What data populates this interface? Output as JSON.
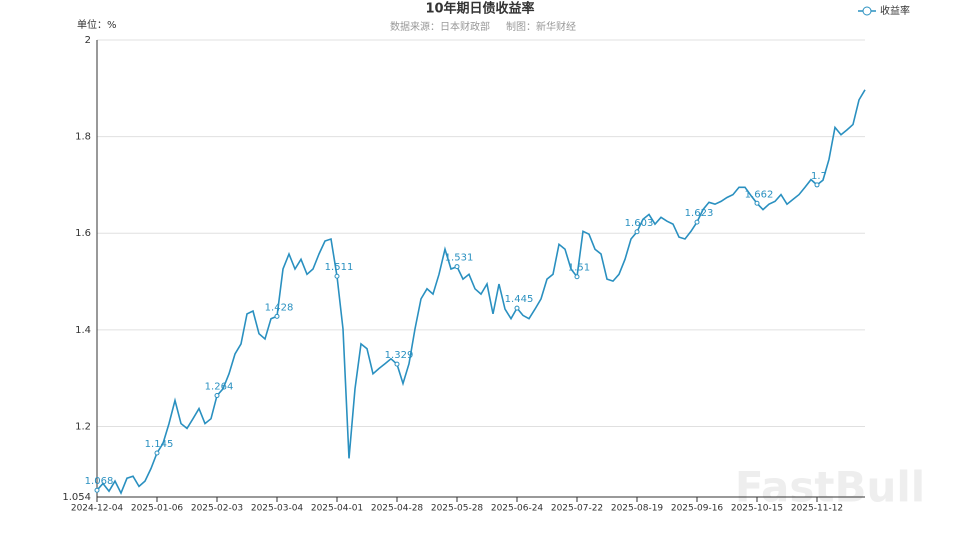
{
  "chart_data": {
    "type": "line",
    "title": "10年期日债收益率",
    "source": "数据来源：日本财政部",
    "maker": "制图：新华财经",
    "unit_label": "单位：%",
    "watermark": "FastBull",
    "categories": [
      "2024-12-04",
      null,
      null,
      null,
      null,
      null,
      null,
      null,
      null,
      null,
      "2025-01-06",
      null,
      null,
      null,
      null,
      null,
      null,
      null,
      null,
      null,
      "2025-02-03",
      null,
      null,
      null,
      null,
      null,
      null,
      null,
      null,
      null,
      "2025-03-04",
      null,
      null,
      null,
      null,
      null,
      null,
      null,
      null,
      null,
      "2025-04-01",
      null,
      null,
      null,
      null,
      null,
      null,
      null,
      null,
      null,
      "2025-04-28",
      null,
      null,
      null,
      null,
      null,
      null,
      null,
      null,
      null,
      "2025-05-28",
      null,
      null,
      null,
      null,
      null,
      null,
      null,
      null,
      null,
      "2025-06-24",
      null,
      null,
      null,
      null,
      null,
      null,
      null,
      null,
      null,
      "2025-07-22",
      null,
      null,
      null,
      null,
      null,
      null,
      null,
      null,
      null,
      "2025-08-19",
      null,
      null,
      null,
      null,
      null,
      null,
      null,
      null,
      null,
      "2025-09-16",
      null,
      null,
      null,
      null,
      null,
      null,
      null,
      null,
      null,
      "2025-10-15",
      null,
      null,
      null,
      null,
      null,
      null,
      null,
      null,
      null,
      "2025-11-12",
      null,
      null,
      null,
      null,
      null,
      null,
      null,
      null
    ],
    "series": [
      {
        "name": "收益率",
        "color": "#2a90c0",
        "values": [
          1.068,
          1.082,
          1.066,
          1.087,
          1.062,
          1.093,
          1.097,
          1.076,
          1.087,
          1.113,
          1.145,
          1.165,
          1.206,
          1.254,
          1.206,
          1.196,
          1.216,
          1.237,
          1.206,
          1.216,
          1.264,
          1.278,
          1.309,
          1.35,
          1.371,
          1.433,
          1.439,
          1.392,
          1.381,
          1.423,
          1.428,
          1.526,
          1.557,
          1.526,
          1.546,
          1.515,
          1.526,
          1.557,
          1.584,
          1.588,
          1.511,
          1.402,
          1.134,
          1.278,
          1.371,
          1.361,
          1.309,
          1.32,
          1.33,
          1.34,
          1.329,
          1.289,
          1.33,
          1.402,
          1.464,
          1.485,
          1.474,
          1.515,
          1.567,
          1.526,
          1.531,
          1.505,
          1.515,
          1.485,
          1.474,
          1.495,
          1.433,
          1.495,
          1.443,
          1.423,
          1.445,
          1.43,
          1.423,
          1.443,
          1.464,
          1.505,
          1.515,
          1.577,
          1.567,
          1.526,
          1.51,
          1.604,
          1.598,
          1.567,
          1.557,
          1.505,
          1.501,
          1.515,
          1.546,
          1.588,
          1.603,
          1.629,
          1.639,
          1.619,
          1.633,
          1.625,
          1.619,
          1.592,
          1.588,
          1.604,
          1.623,
          1.649,
          1.664,
          1.66,
          1.666,
          1.674,
          1.68,
          1.695,
          1.695,
          1.678,
          1.662,
          1.649,
          1.66,
          1.666,
          1.68,
          1.66,
          1.67,
          1.68,
          1.695,
          1.711,
          1.7,
          1.71,
          1.753,
          1.819,
          1.804,
          1.814,
          1.825,
          1.876,
          1.897
        ]
      }
    ],
    "ylim": [
      1.054,
      2
    ],
    "yticks": [
      1.054,
      1.2,
      1.4,
      1.6,
      1.8,
      2
    ],
    "grid": true,
    "legend": "top-right"
  }
}
